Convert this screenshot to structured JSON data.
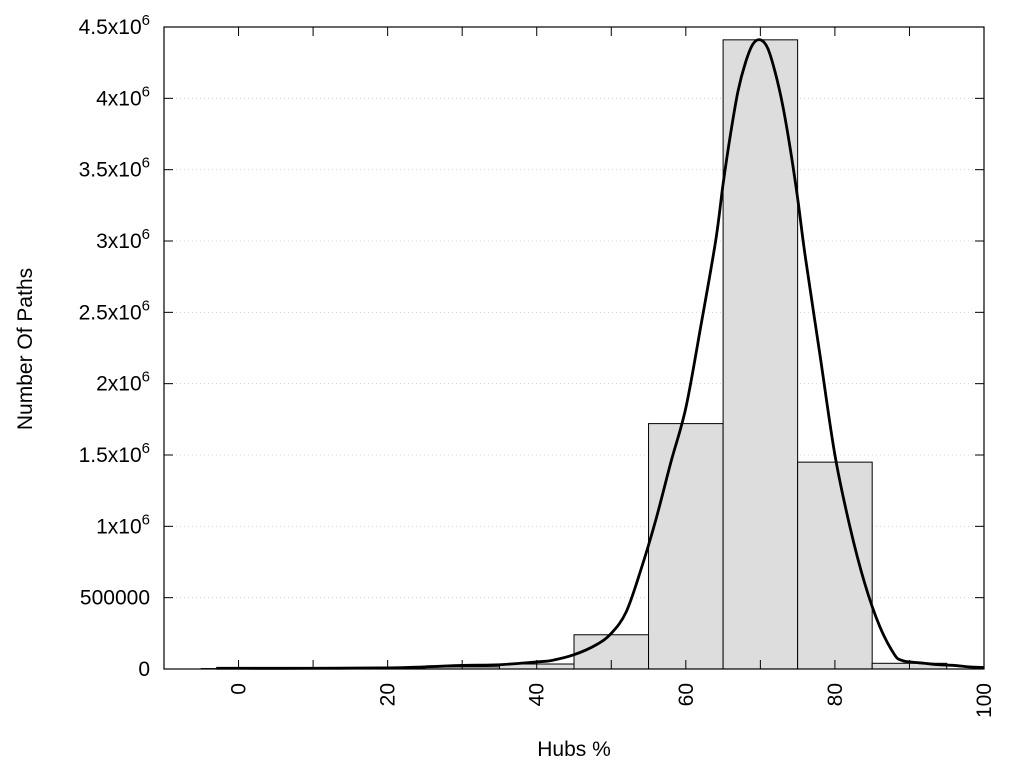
{
  "chart_data": {
    "type": "bar",
    "xlabel": "Hubs %",
    "ylabel": "Number Of Paths",
    "xlim": [
      -10,
      100
    ],
    "ylim": [
      0,
      4500000
    ],
    "grid": true,
    "legend": "none",
    "x_ticks": [
      {
        "value": 0,
        "label": "0"
      },
      {
        "value": 20,
        "label": "20"
      },
      {
        "value": 40,
        "label": "40"
      },
      {
        "value": 60,
        "label": "60"
      },
      {
        "value": 80,
        "label": "80"
      },
      {
        "value": 100,
        "label": "100"
      }
    ],
    "y_ticks": [
      {
        "value": 0,
        "base": "0",
        "exp": ""
      },
      {
        "value": 500000,
        "base": "500000",
        "exp": ""
      },
      {
        "value": 1000000,
        "base": "1x10",
        "exp": "6"
      },
      {
        "value": 1500000,
        "base": "1.5x10",
        "exp": "6"
      },
      {
        "value": 2000000,
        "base": "2x10",
        "exp": "6"
      },
      {
        "value": 2500000,
        "base": "2.5x10",
        "exp": "6"
      },
      {
        "value": 3000000,
        "base": "3x10",
        "exp": "6"
      },
      {
        "value": 3500000,
        "base": "3.5x10",
        "exp": "6"
      },
      {
        "value": 4000000,
        "base": "4x10",
        "exp": "6"
      },
      {
        "value": 4500000,
        "base": "4.5x10",
        "exp": "6"
      }
    ],
    "bars": [
      {
        "x": 0,
        "value": 3000
      },
      {
        "x": 10,
        "value": 5000
      },
      {
        "x": 20,
        "value": 8000
      },
      {
        "x": 30,
        "value": 15000
      },
      {
        "x": 40,
        "value": 35000
      },
      {
        "x": 50,
        "value": 240000
      },
      {
        "x": 60,
        "value": 1720000
      },
      {
        "x": 70,
        "value": 4410000
      },
      {
        "x": 80,
        "value": 1450000
      },
      {
        "x": 90,
        "value": 40000
      }
    ],
    "bar_width": 10,
    "bar_color": "#dddddd",
    "curve": {
      "x": [
        -3,
        0,
        10,
        20,
        25,
        30,
        35,
        40,
        42,
        45,
        48,
        50,
        52,
        54,
        56,
        58,
        60,
        62,
        64,
        65,
        66,
        67,
        68,
        69,
        70,
        71,
        72,
        73,
        74,
        75,
        76,
        78,
        80,
        82,
        84,
        86,
        88,
        89,
        90,
        92,
        94,
        96,
        98,
        100
      ],
      "y": [
        5000,
        5000,
        5000,
        8000,
        15000,
        25000,
        30000,
        50000,
        60000,
        100000,
        170000,
        250000,
        400000,
        700000,
        1050000,
        1450000,
        1830000,
        2400000,
        3000000,
        3400000,
        3750000,
        4050000,
        4250000,
        4380000,
        4410000,
        4350000,
        4180000,
        3950000,
        3650000,
        3300000,
        2900000,
        2200000,
        1500000,
        1000000,
        600000,
        300000,
        100000,
        60000,
        50000,
        40000,
        30000,
        25000,
        15000,
        10000
      ],
      "color": "#000000"
    }
  }
}
